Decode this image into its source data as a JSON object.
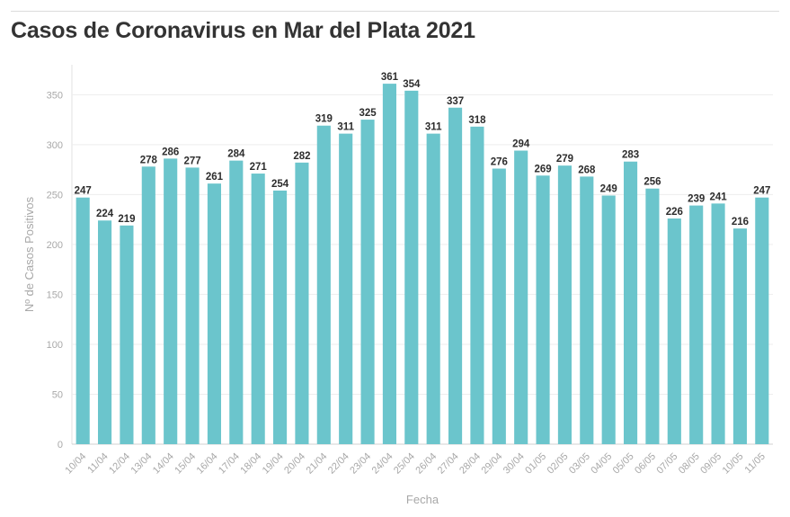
{
  "header": {
    "title": "Casos de Coronavirus en Mar del Plata 2021"
  },
  "chart_data": {
    "type": "bar",
    "title": "Casos de Coronavirus en Mar del Plata 2021",
    "xlabel": "Fecha",
    "ylabel": "Nº de Casos Positivos",
    "ylim": [
      0,
      380
    ],
    "yticks": [
      0,
      50,
      100,
      150,
      200,
      250,
      300,
      350
    ],
    "grid": true,
    "bar_color": "#6bc5cc",
    "categories": [
      "10/04",
      "11/04",
      "12/04",
      "13/04",
      "14/04",
      "15/04",
      "16/04",
      "17/04",
      "18/04",
      "19/04",
      "20/04",
      "21/04",
      "22/04",
      "23/04",
      "24/04",
      "25/04",
      "26/04",
      "27/04",
      "28/04",
      "29/04",
      "30/04",
      "01/05",
      "02/05",
      "03/05",
      "04/05",
      "05/05",
      "06/05",
      "07/05",
      "08/05",
      "09/05",
      "10/05",
      "11/05"
    ],
    "values": [
      247,
      224,
      219,
      278,
      286,
      277,
      261,
      284,
      271,
      254,
      282,
      319,
      311,
      325,
      361,
      354,
      311,
      337,
      318,
      276,
      294,
      269,
      279,
      268,
      249,
      283,
      256,
      226,
      239,
      241,
      216,
      247
    ]
  }
}
